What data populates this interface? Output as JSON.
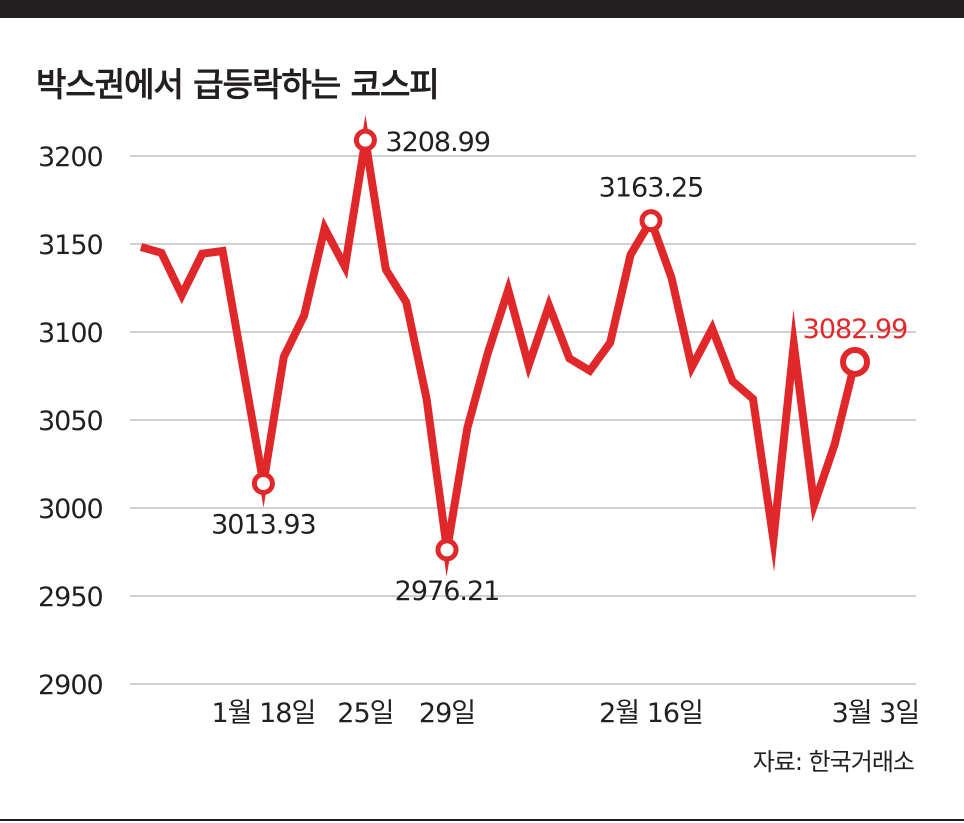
{
  "header": {
    "title": "박스권에서 급등락하는 코스피"
  },
  "footer": {
    "source": "자료: 한국거래소"
  },
  "colors": {
    "line": "#e0282a",
    "highlight_label": "#e0282a",
    "text": "#231f20",
    "grid": "#b3b3b3"
  },
  "chart_data": {
    "type": "line",
    "title": "박스권에서 급등락하는 코스피",
    "xlabel": "",
    "ylabel": "",
    "ylim": [
      2900,
      3200
    ],
    "yticks": [
      3200,
      3150,
      3100,
      3050,
      3000,
      2950,
      2900
    ],
    "grid": true,
    "x_tick_labels": [
      {
        "index": 6,
        "label": "1월 18일"
      },
      {
        "index": 11,
        "label": "25일"
      },
      {
        "index": 15,
        "label": "29일"
      },
      {
        "index": 25,
        "label": "2월 16일"
      },
      {
        "index": 36,
        "label": "3월 3일"
      }
    ],
    "series": [
      {
        "values": [
          3148.29,
          3145.0,
          3121.0,
          3144.5,
          3146.0,
          3080.0,
          3013.93,
          3085.9,
          3109.5,
          3159.0,
          3137.0,
          3208.99,
          3135.5,
          3117.0,
          3062.0,
          2976.21,
          3045.5,
          3088.0,
          3124.0,
          3081.0,
          3115.0,
          3085.0,
          3078.0,
          3094.0,
          3144.0,
          3163.25,
          3131.0,
          3080.0,
          3102.0,
          3072.0,
          3062.0,
          2982.0,
          3093.0,
          3002.0,
          3036.0,
          3082.99
        ]
      }
    ],
    "annotations": [
      {
        "index": 6,
        "label": "3013.93",
        "position": "below",
        "highlight": false
      },
      {
        "index": 11,
        "label": "3208.99",
        "position": "right",
        "highlight": false
      },
      {
        "index": 15,
        "label": "2976.21",
        "position": "below",
        "highlight": false
      },
      {
        "index": 25,
        "label": "3163.25",
        "position": "above",
        "highlight": false
      },
      {
        "index": 35,
        "label": "3082.99",
        "position": "above",
        "highlight": true
      }
    ]
  }
}
